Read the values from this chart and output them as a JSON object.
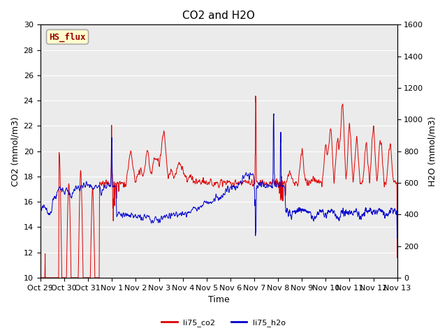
{
  "title": "CO2 and H2O",
  "ylabel_left": "CO2 (mmol/m3)",
  "ylabel_right": "H2O (mmol/m3)",
  "xlabel": "Time",
  "ylim_left": [
    10,
    30
  ],
  "ylim_right": [
    0,
    1600
  ],
  "yticks_left": [
    10,
    12,
    14,
    16,
    18,
    20,
    22,
    24,
    26,
    28,
    30
  ],
  "yticks_right": [
    0,
    200,
    400,
    600,
    800,
    1000,
    1200,
    1400,
    1600
  ],
  "xtick_labels": [
    "Oct 29",
    "Oct 30",
    "Oct 31",
    "Nov 1",
    "Nov 2",
    "Nov 3",
    "Nov 4",
    "Nov 5",
    "Nov 6",
    "Nov 7",
    "Nov 8",
    "Nov 9",
    "Nov 10",
    "Nov 11",
    "Nov 12",
    "Nov 13"
  ],
  "box_label": "HS_flux",
  "box_facecolor": "#FFFFCC",
  "box_edgecolor": "#AAAAAA",
  "box_textcolor": "#990000",
  "co2_color": "#DD0000",
  "h2o_color": "#0000CC",
  "legend_labels": [
    "li75_co2",
    "li75_h2o"
  ],
  "bg_color": "#EBEBEB",
  "fig_bg": "#FFFFFF",
  "grid_color": "#FFFFFF",
  "title_fontsize": 11,
  "axis_label_fontsize": 9,
  "tick_fontsize": 8
}
